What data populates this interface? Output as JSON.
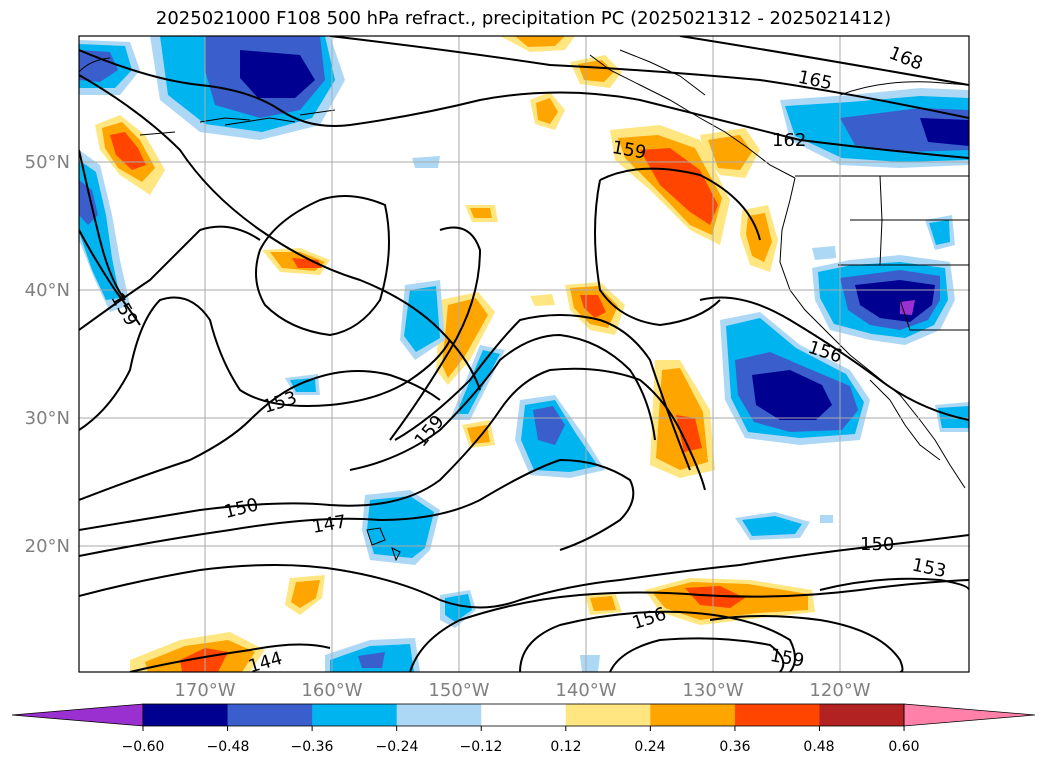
{
  "title": "2025021000 F108 500 hPa refract., precipitation PC (2025021312 - 2025021412)",
  "map": {
    "lat_labels": [
      "50°N",
      "40°N",
      "30°N",
      "20°N"
    ],
    "lon_labels": [
      "170°W",
      "160°W",
      "150°W",
      "140°W",
      "130°W",
      "120°W"
    ],
    "contour_labels": [
      {
        "text": "168"
      },
      {
        "text": "165"
      },
      {
        "text": "162"
      },
      {
        "text": "159"
      },
      {
        "text": "159"
      },
      {
        "text": "156"
      },
      {
        "text": "153"
      },
      {
        "text": "159"
      },
      {
        "text": "150"
      },
      {
        "text": "147"
      },
      {
        "text": "150"
      },
      {
        "text": "153"
      },
      {
        "text": "156"
      },
      {
        "text": "159"
      },
      {
        "text": "144"
      }
    ]
  },
  "colorbar": {
    "tick_labels": [
      "−0.60",
      "−0.48",
      "−0.36",
      "−0.24",
      "−0.12",
      "0.12",
      "0.24",
      "0.36",
      "0.48",
      "0.60"
    ],
    "colors": [
      "#9b30d0",
      "#000090",
      "#3a5fcd",
      "#00b4f0",
      "#add8f5",
      "#ffffff",
      "#ffe680",
      "#ffa500",
      "#ff4500",
      "#b22222",
      "#ff80a8"
    ]
  },
  "palette": {
    "pos": [
      "#ffe680",
      "#ffa500",
      "#ff4500"
    ],
    "neg": [
      "#add8f5",
      "#00b4f0",
      "#3a5fcd",
      "#000090",
      "#9b30d0"
    ]
  }
}
